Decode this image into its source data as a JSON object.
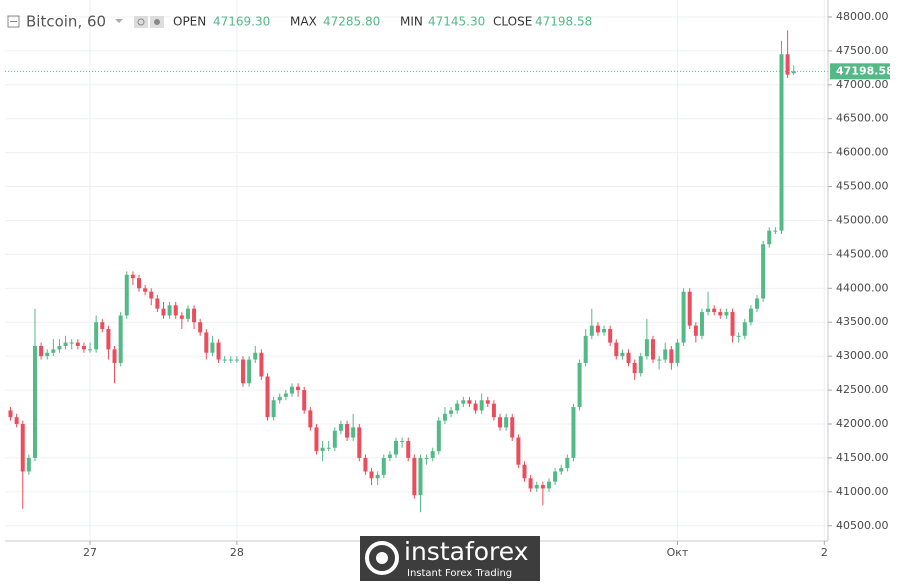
{
  "chart_data": {
    "type": "candlestick",
    "title": "Bitcoin, 60",
    "header": [
      {
        "name": "OPEN",
        "value_label": "47169.30"
      },
      {
        "name": "MAX",
        "value_label": "47285.80"
      },
      {
        "name": "MIN",
        "value_label": "47145.30"
      },
      {
        "name": "CLOSE",
        "value_label": "47198.58"
      }
    ],
    "last_price_label": "47198.58",
    "watermark": {
      "brand": "instaforex",
      "tagline": "Instant Forex Trading"
    },
    "up_color": "#53b987",
    "down_color": "#eb4d5c",
    "grid": true,
    "xlim": [
      0.1,
      134.6
    ],
    "xticks": [
      {
        "value": 14,
        "label": "27"
      },
      {
        "value": 38,
        "label": "28"
      },
      {
        "value": 110,
        "label": "Окт"
      },
      {
        "value": 134,
        "label": "2"
      }
    ],
    "ylim": [
      40290,
      48250
    ],
    "yticks": [
      {
        "value": 40500,
        "label": "40500.00"
      },
      {
        "value": 41000,
        "label": "41000.00"
      },
      {
        "value": 41500,
        "label": "41500.00"
      },
      {
        "value": 42000,
        "label": "42000.00"
      },
      {
        "value": 42500,
        "label": "42500.00"
      },
      {
        "value": 43000,
        "label": "43000.00"
      },
      {
        "value": 43500,
        "label": "43500.00"
      },
      {
        "value": 44000,
        "label": "44000.00"
      },
      {
        "value": 44500,
        "label": "44500.00"
      },
      {
        "value": 45000,
        "label": "45000.00"
      },
      {
        "value": 45500,
        "label": "45500.00"
      },
      {
        "value": 46000,
        "label": "46000.00"
      },
      {
        "value": 46500,
        "label": "46500.00"
      },
      {
        "value": 47000,
        "label": "47000.00"
      },
      {
        "value": 47500,
        "label": "47500.00"
      },
      {
        "value": 48000,
        "label": "48000.00"
      }
    ],
    "x": [
      1,
      2,
      3,
      4,
      5,
      6,
      7,
      8,
      9,
      10,
      11,
      12,
      13,
      14,
      15,
      16,
      17,
      18,
      19,
      20,
      21,
      22,
      23,
      24,
      25,
      26,
      27,
      28,
      29,
      30,
      31,
      32,
      33,
      34,
      35,
      36,
      37,
      38,
      39,
      40,
      41,
      42,
      43,
      44,
      45,
      46,
      47,
      48,
      49,
      50,
      51,
      52,
      53,
      54,
      55,
      56,
      57,
      58,
      59,
      60,
      61,
      62,
      63,
      64,
      65,
      66,
      67,
      68,
      69,
      70,
      71,
      72,
      73,
      74,
      75,
      76,
      77,
      78,
      79,
      80,
      81,
      82,
      83,
      84,
      85,
      86,
      87,
      88,
      89,
      90,
      91,
      92,
      93,
      94,
      95,
      96,
      97,
      98,
      99,
      100,
      101,
      102,
      103,
      104,
      105,
      106,
      107,
      108,
      109,
      110,
      111,
      112,
      113,
      114,
      115,
      116,
      117,
      118,
      119,
      120,
      121,
      122,
      123,
      124,
      125,
      126,
      127,
      128,
      129
    ],
    "candles": [
      [
        42200,
        42250,
        42050,
        42100
      ],
      [
        42100,
        42150,
        41950,
        42000
      ],
      [
        42000,
        42050,
        40750,
        41300
      ],
      [
        41300,
        41550,
        41250,
        41500
      ],
      [
        41500,
        43700,
        41450,
        43150
      ],
      [
        43150,
        43200,
        42950,
        43000
      ],
      [
        43000,
        43100,
        42950,
        43050
      ],
      [
        43050,
        43250,
        43000,
        43100
      ],
      [
        43100,
        43250,
        43050,
        43150
      ],
      [
        43150,
        43300,
        43100,
        43200
      ],
      [
        43200,
        43250,
        43100,
        43200
      ],
      [
        43200,
        43250,
        43100,
        43150
      ],
      [
        43150,
        43200,
        43050,
        43100
      ],
      [
        43100,
        43200,
        43050,
        43100
      ],
      [
        43100,
        43600,
        43050,
        43500
      ],
      [
        43500,
        43550,
        43350,
        43400
      ],
      [
        43400,
        43450,
        42950,
        43100
      ],
      [
        43100,
        43150,
        42600,
        42900
      ],
      [
        42900,
        43650,
        42850,
        43600
      ],
      [
        43600,
        44250,
        43550,
        44200
      ],
      [
        44200,
        44250,
        44050,
        44150
      ],
      [
        44150,
        44200,
        43950,
        44000
      ],
      [
        44000,
        44050,
        43900,
        43950
      ],
      [
        43950,
        44000,
        43750,
        43850
      ],
      [
        43850,
        43900,
        43650,
        43700
      ],
      [
        43700,
        43800,
        43550,
        43600
      ],
      [
        43600,
        43800,
        43550,
        43750
      ],
      [
        43750,
        43800,
        43550,
        43600
      ],
      [
        43600,
        43650,
        43400,
        43550
      ],
      [
        43550,
        43750,
        43500,
        43700
      ],
      [
        43700,
        43750,
        43400,
        43500
      ],
      [
        43500,
        43550,
        43300,
        43350
      ],
      [
        43350,
        43400,
        42950,
        43050
      ],
      [
        43050,
        43300,
        43000,
        43200
      ],
      [
        43200,
        43250,
        42900,
        42950
      ],
      [
        42950,
        43000,
        42900,
        42950
      ],
      [
        42950,
        43000,
        42900,
        42950
      ],
      [
        42950,
        43000,
        42900,
        42950
      ],
      [
        42950,
        43000,
        42550,
        42600
      ],
      [
        42600,
        43000,
        42550,
        42950
      ],
      [
        42950,
        43150,
        42900,
        43050
      ],
      [
        43050,
        43100,
        42650,
        42700
      ],
      [
        42700,
        42750,
        42050,
        42100
      ],
      [
        42100,
        42400,
        42050,
        42350
      ],
      [
        42350,
        42450,
        42300,
        42400
      ],
      [
        42400,
        42500,
        42350,
        42450
      ],
      [
        42450,
        42600,
        42400,
        42550
      ],
      [
        42550,
        42600,
        42400,
        42500
      ],
      [
        42500,
        42550,
        42150,
        42200
      ],
      [
        42200,
        42250,
        41900,
        41950
      ],
      [
        41950,
        42000,
        41550,
        41600
      ],
      [
        41600,
        41750,
        41450,
        41650
      ],
      [
        41650,
        41750,
        41600,
        41650
      ],
      [
        41650,
        41950,
        41600,
        41900
      ],
      [
        41900,
        42050,
        41850,
        42000
      ],
      [
        42000,
        42050,
        41750,
        41800
      ],
      [
        41800,
        42150,
        41750,
        41950
      ],
      [
        41950,
        42000,
        41450,
        41500
      ],
      [
        41500,
        41550,
        41250,
        41300
      ],
      [
        41300,
        41350,
        41100,
        41200
      ],
      [
        41200,
        41300,
        41100,
        41250
      ],
      [
        41250,
        41550,
        41200,
        41500
      ],
      [
        41500,
        41600,
        41450,
        41550
      ],
      [
        41550,
        41800,
        41500,
        41750
      ],
      [
        41750,
        41800,
        41650,
        41750
      ],
      [
        41750,
        41800,
        41450,
        41500
      ],
      [
        41500,
        41550,
        40900,
        40950
      ],
      [
        40950,
        41550,
        40700,
        41500
      ],
      [
        41500,
        41550,
        41400,
        41500
      ],
      [
        41500,
        41650,
        41450,
        41600
      ],
      [
        41600,
        42100,
        41550,
        42050
      ],
      [
        42050,
        42250,
        42000,
        42150
      ],
      [
        42150,
        42250,
        42100,
        42200
      ],
      [
        42200,
        42350,
        42150,
        42300
      ],
      [
        42300,
        42400,
        42250,
        42350
      ],
      [
        42350,
        42400,
        42250,
        42300
      ],
      [
        42300,
        42350,
        42150,
        42200
      ],
      [
        42200,
        42450,
        42150,
        42350
      ],
      [
        42350,
        42400,
        42250,
        42300
      ],
      [
        42300,
        42350,
        42050,
        42100
      ],
      [
        42100,
        42150,
        41900,
        41950
      ],
      [
        41950,
        42150,
        41900,
        42100
      ],
      [
        42100,
        42150,
        41750,
        41800
      ],
      [
        41800,
        41850,
        41350,
        41400
      ],
      [
        41400,
        41450,
        41150,
        41200
      ],
      [
        41200,
        41250,
        41000,
        41050
      ],
      [
        41050,
        41150,
        41000,
        41100
      ],
      [
        41100,
        41150,
        40800,
        41050
      ],
      [
        41050,
        41200,
        41000,
        41150
      ],
      [
        41150,
        41350,
        41100,
        41300
      ],
      [
        41300,
        41400,
        41250,
        41350
      ],
      [
        41350,
        41550,
        41300,
        41500
      ],
      [
        41500,
        42300,
        41450,
        42250
      ],
      [
        42250,
        42950,
        42200,
        42900
      ],
      [
        42900,
        43400,
        42850,
        43300
      ],
      [
        43300,
        43700,
        43250,
        43450
      ],
      [
        43450,
        43500,
        43300,
        43350
      ],
      [
        43350,
        43450,
        43300,
        43400
      ],
      [
        43400,
        43450,
        43150,
        43200
      ],
      [
        43200,
        43250,
        42950,
        43000
      ],
      [
        43000,
        43100,
        42950,
        43050
      ],
      [
        43050,
        43100,
        42850,
        42900
      ],
      [
        42900,
        42950,
        42650,
        42750
      ],
      [
        42750,
        43050,
        42700,
        43000
      ],
      [
        43000,
        43550,
        42950,
        43250
      ],
      [
        43250,
        43300,
        42900,
        42950
      ],
      [
        42950,
        43000,
        42800,
        42950
      ],
      [
        42950,
        43200,
        42900,
        43100
      ],
      [
        43100,
        43150,
        42800,
        42900
      ],
      [
        42900,
        43250,
        42850,
        43200
      ],
      [
        43200,
        44000,
        43150,
        43950
      ],
      [
        43950,
        44000,
        43400,
        43450
      ],
      [
        43450,
        43500,
        43200,
        43300
      ],
      [
        43300,
        43700,
        43250,
        43650
      ],
      [
        43650,
        43950,
        43600,
        43700
      ],
      [
        43700,
        43750,
        43600,
        43650
      ],
      [
        43650,
        43700,
        43550,
        43600
      ],
      [
        43600,
        43700,
        43550,
        43650
      ],
      [
        43650,
        43700,
        43200,
        43300
      ],
      [
        43300,
        43350,
        43200,
        43300
      ],
      [
        43300,
        43550,
        43250,
        43500
      ],
      [
        43500,
        43750,
        43450,
        43700
      ],
      [
        43700,
        43900,
        43650,
        43850
      ],
      [
        43850,
        44700,
        43800,
        44650
      ],
      [
        44650,
        44900,
        44600,
        44850
      ],
      [
        44850,
        44900,
        44800,
        44850
      ],
      [
        44850,
        47650,
        44800,
        47450
      ],
      [
        47450,
        47800,
        47100,
        47150
      ],
      [
        47169.3,
        47285.8,
        47145.3,
        47198.58
      ]
    ]
  }
}
